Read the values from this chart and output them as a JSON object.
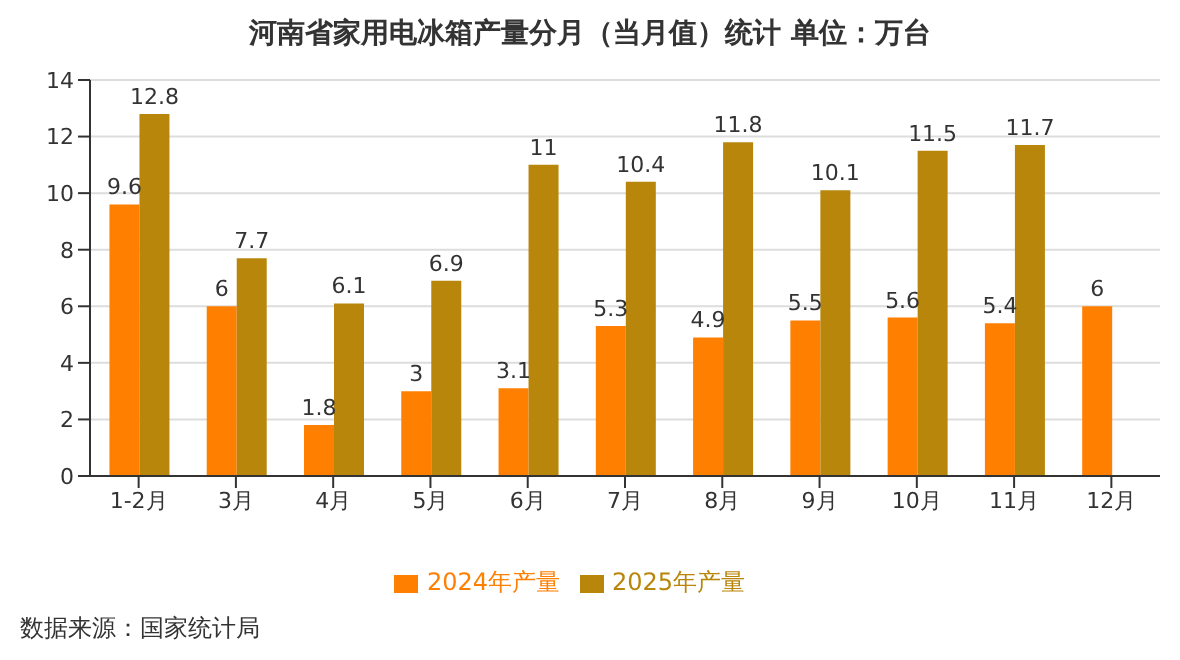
{
  "chart_data": {
    "type": "bar",
    "title": "河南省家用电冰箱产量分月（当月值）统计  单位：万台",
    "categories": [
      "1-2月",
      "3月",
      "4月",
      "5月",
      "6月",
      "7月",
      "8月",
      "9月",
      "10月",
      "11月",
      "12月"
    ],
    "series": [
      {
        "name": "2024年产量",
        "color": "#ff7f00",
        "values": [
          9.6,
          6,
          1.8,
          3,
          3.1,
          5.3,
          4.9,
          5.5,
          5.6,
          5.4,
          6
        ]
      },
      {
        "name": "2025年产量",
        "color": "#b8860b",
        "values": [
          12.8,
          7.7,
          6.1,
          6.9,
          11,
          10.4,
          11.8,
          10.1,
          11.5,
          11.7,
          null
        ]
      }
    ],
    "ylim": [
      0,
      14
    ],
    "yticks": [
      0,
      2,
      4,
      6,
      8,
      10,
      12,
      14
    ],
    "grid": "y",
    "legend": "bottom",
    "data_labels": true,
    "annotations": [
      "数据来源：国家统计局"
    ]
  }
}
